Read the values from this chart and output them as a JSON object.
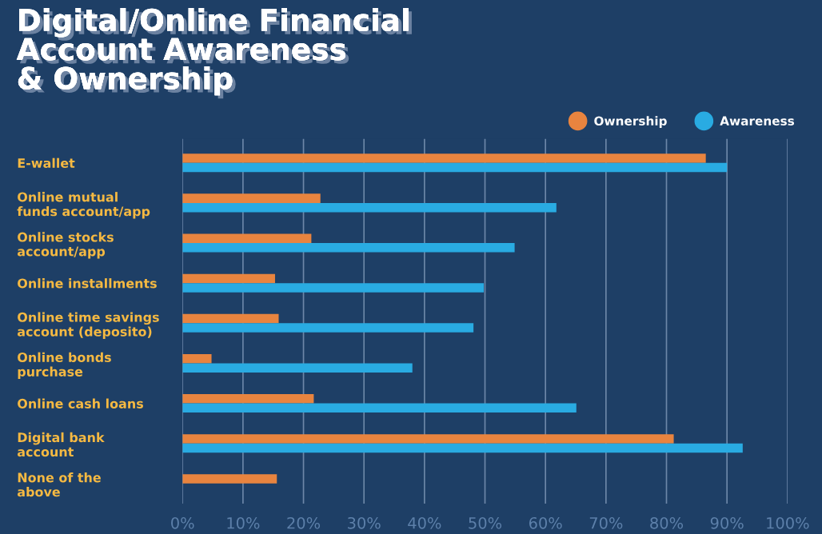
{
  "chart_data": {
    "type": "bar",
    "orientation": "horizontal",
    "title": "Digital/Online Financial\nAccount Awareness\n& Ownership",
    "categories": [
      "E-wallet",
      "Online mutual\nfunds account/app",
      "Online stocks\naccount/app",
      "Online installments",
      "Online time savings\naccount (deposito)",
      "Online bonds\npurchase",
      "Online cash loans",
      "Digital bank\naccount",
      "None of the\nabove"
    ],
    "series": [
      {
        "name": "Ownership",
        "color": "#e8843f",
        "values": [
          86.5,
          22.8,
          21.3,
          15.3,
          15.9,
          4.8,
          21.7,
          81.2,
          15.6
        ]
      },
      {
        "name": "Awareness",
        "color": "#29abe2",
        "values": [
          90.0,
          61.8,
          54.9,
          49.8,
          48.1,
          38.0,
          65.1,
          92.6,
          null
        ]
      }
    ],
    "xlim": [
      0,
      100
    ],
    "xticks": [
      {
        "value": 0,
        "label": "0%"
      },
      {
        "value": 10,
        "label": "10%"
      },
      {
        "value": 20,
        "label": "20%"
      },
      {
        "value": 30,
        "label": "30%"
      },
      {
        "value": 40,
        "label": "40%"
      },
      {
        "value": 50,
        "label": "50%"
      },
      {
        "value": 60,
        "label": "60%"
      },
      {
        "value": 70,
        "label": "70%"
      },
      {
        "value": 80,
        "label": "80%"
      },
      {
        "value": 90,
        "label": "90%"
      },
      {
        "value": 100,
        "label": "100%"
      }
    ],
    "grid": "x",
    "legend": "top right",
    "marker": "circle"
  }
}
